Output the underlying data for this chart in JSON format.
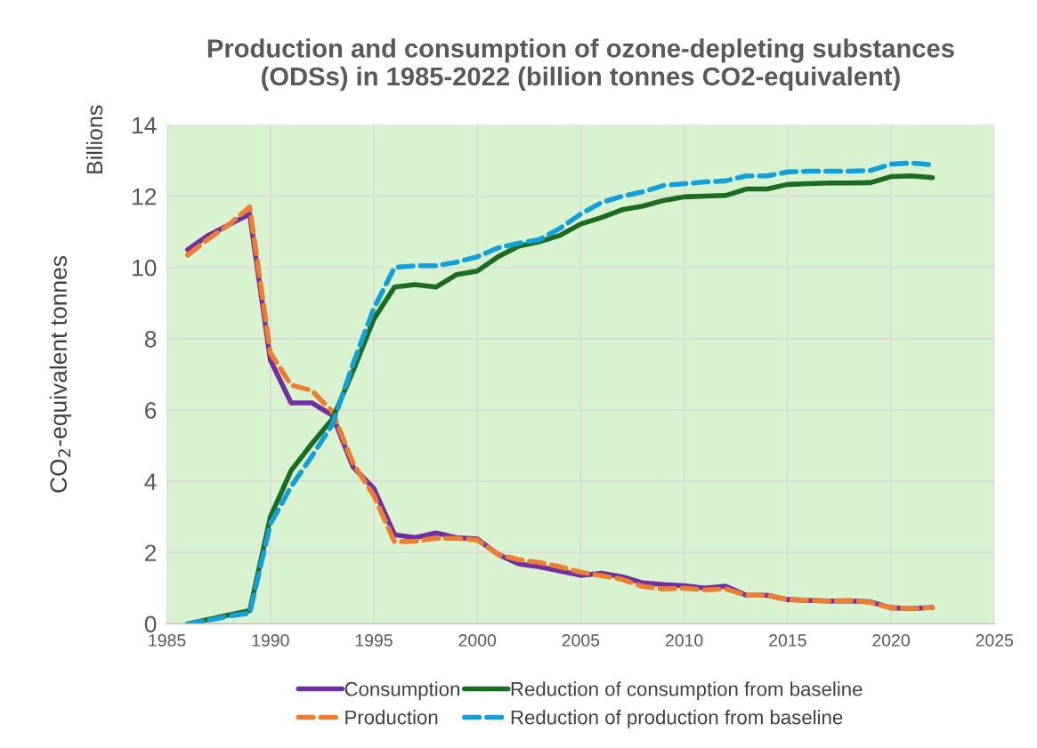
{
  "chart_data": {
    "type": "line",
    "title": "Production and consumption of ozone-depleting substances\n(ODSs) in 1985-2022 (billion tonnes CO2-equivalent)",
    "ylabel": "CO$_{2}$-equivalent tonnes",
    "annotations": [
      "Billions"
    ],
    "x": [
      1986,
      1987,
      1988,
      1989,
      1990,
      1991,
      1992,
      1993,
      1994,
      1995,
      1996,
      1997,
      1998,
      1999,
      2000,
      2001,
      2002,
      2003,
      2004,
      2005,
      2006,
      2007,
      2008,
      2009,
      2010,
      2011,
      2012,
      2013,
      2014,
      2015,
      2016,
      2017,
      2018,
      2019,
      2020,
      2021,
      2022
    ],
    "series": [
      {
        "name": "Consumption",
        "color": "#7030a0",
        "line_style": "solid",
        "values": [
          10.5,
          10.9,
          11.2,
          11.5,
          7.4,
          6.2,
          6.2,
          5.85,
          4.4,
          3.8,
          2.5,
          2.42,
          2.55,
          2.42,
          2.38,
          1.95,
          1.68,
          1.6,
          1.48,
          1.36,
          1.42,
          1.32,
          1.15,
          1.1,
          1.07,
          1.0,
          1.06,
          0.8,
          0.8,
          0.68,
          0.66,
          0.64,
          0.64,
          0.62,
          0.45,
          0.43,
          0.46
        ]
      },
      {
        "name": "Production",
        "color": "#ed7d31",
        "line_style": "dashed",
        "values": [
          10.35,
          10.8,
          11.2,
          11.7,
          7.6,
          6.7,
          6.55,
          5.95,
          4.5,
          3.6,
          2.3,
          2.32,
          2.4,
          2.4,
          2.35,
          1.95,
          1.8,
          1.72,
          1.6,
          1.45,
          1.35,
          1.25,
          1.05,
          0.98,
          1.0,
          0.95,
          0.98,
          0.8,
          0.8,
          0.68,
          0.66,
          0.64,
          0.66,
          0.6,
          0.45,
          0.43,
          0.46
        ]
      },
      {
        "name": "Reduction of consumption from baseline",
        "color": "#1b6b23",
        "line_style": "solid",
        "values": [
          0,
          0.12,
          0.25,
          0.37,
          3.0,
          4.3,
          5.05,
          5.75,
          7.1,
          8.55,
          9.45,
          9.52,
          9.45,
          9.8,
          9.9,
          10.3,
          10.6,
          10.72,
          10.9,
          11.22,
          11.4,
          11.62,
          11.72,
          11.88,
          11.98,
          12.0,
          12.02,
          12.2,
          12.2,
          12.33,
          12.35,
          12.37,
          12.37,
          12.38,
          12.55,
          12.57,
          12.52
        ]
      },
      {
        "name": "Reduction of production from baseline",
        "color": "#13a0d8",
        "line_style": "dashed",
        "values": [
          0,
          0.1,
          0.22,
          0.3,
          2.8,
          3.85,
          4.7,
          5.6,
          7.3,
          8.85,
          10.0,
          10.05,
          10.05,
          10.15,
          10.3,
          10.55,
          10.68,
          10.78,
          11.1,
          11.5,
          11.82,
          12.0,
          12.12,
          12.3,
          12.35,
          12.4,
          12.43,
          12.57,
          12.57,
          12.68,
          12.7,
          12.7,
          12.7,
          12.72,
          12.9,
          12.93,
          12.88
        ]
      }
    ],
    "xlim": [
      1985,
      2025
    ],
    "xticks": [
      1985,
      1990,
      1995,
      2000,
      2005,
      2010,
      2015,
      2020,
      2025
    ],
    "ylim": [
      0,
      14
    ],
    "yticks": [
      0,
      2,
      4,
      6,
      8,
      10,
      12,
      14
    ],
    "grid": true,
    "legend": "bottom",
    "marker": "none"
  }
}
